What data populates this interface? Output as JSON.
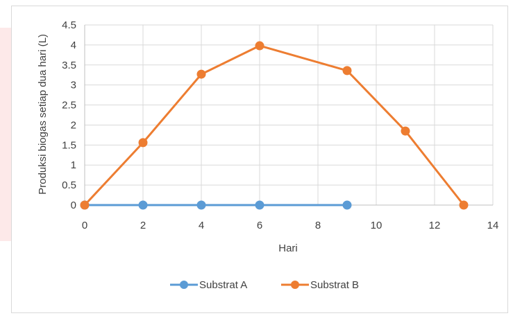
{
  "chart_data": {
    "type": "line",
    "title": "",
    "xlabel": "Hari",
    "ylabel": "Produksi biogas setiap dua hari (L)",
    "xlim": [
      0,
      14
    ],
    "ylim": [
      0,
      4.5
    ],
    "x_ticks": [
      0,
      2,
      4,
      6,
      8,
      10,
      12,
      14
    ],
    "y_ticks": [
      0,
      0.5,
      1,
      1.5,
      2,
      2.5,
      3,
      3.5,
      4,
      4.5
    ],
    "grid": true,
    "legend_position": "bottom",
    "series": [
      {
        "name": "Substrat A",
        "color": "#5b9bd5",
        "x": [
          0,
          2,
          4,
          6,
          9
        ],
        "y": [
          0,
          0,
          0,
          0,
          0
        ]
      },
      {
        "name": "Substrat B",
        "color": "#ed7d31",
        "x": [
          0,
          2,
          4,
          6,
          9,
          11,
          13
        ],
        "y": [
          0,
          1.56,
          3.27,
          3.98,
          3.36,
          1.85,
          0
        ]
      }
    ]
  }
}
